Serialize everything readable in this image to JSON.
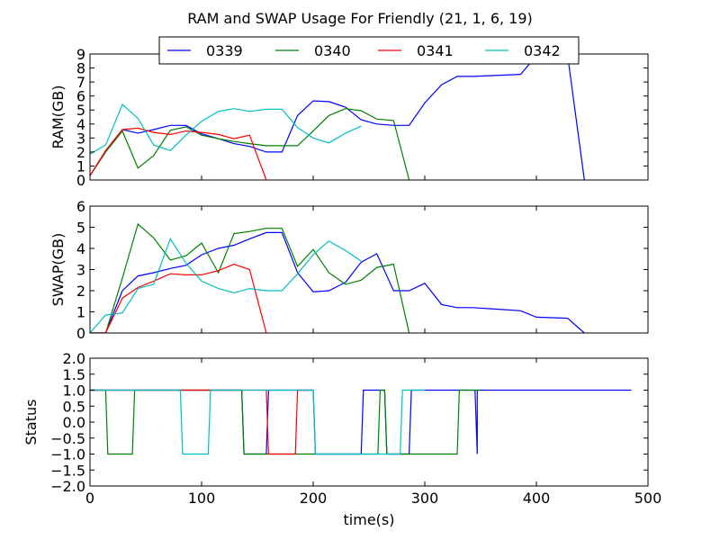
{
  "figure": {
    "title": "RAM and SWAP Usage For Friendly (21, 1, 6, 19)",
    "xlabel": "time(s)"
  },
  "chart_data": [
    {
      "type": "line",
      "ylabel": "RAM(GB)",
      "xlim": [
        0,
        500
      ],
      "ylim": [
        0,
        9
      ],
      "yticks": [
        0,
        1,
        2,
        3,
        4,
        5,
        6,
        7,
        8,
        9
      ],
      "xticks": [],
      "series": [
        {
          "name": "0339",
          "color": "#0000ff",
          "points": [
            [
              0,
              0.3
            ],
            [
              14,
              2.1
            ],
            [
              29,
              3.6
            ],
            [
              43,
              3.35
            ],
            [
              57,
              3.6
            ],
            [
              72,
              3.9
            ],
            [
              86,
              3.9
            ],
            [
              100,
              3.3
            ],
            [
              115,
              2.95
            ],
            [
              129,
              2.6
            ],
            [
              143,
              2.4
            ],
            [
              158,
              2.0
            ],
            [
              172,
              2.0
            ],
            [
              186,
              4.6
            ],
            [
              200,
              5.65
            ],
            [
              214,
              5.6
            ],
            [
              229,
              5.2
            ],
            [
              243,
              4.3
            ],
            [
              257,
              4.0
            ],
            [
              272,
              3.9
            ],
            [
              286,
              3.9
            ],
            [
              300,
              5.5
            ],
            [
              315,
              6.8
            ],
            [
              329,
              7.4
            ],
            [
              343,
              7.4
            ],
            [
              358,
              7.45
            ],
            [
              386,
              7.55
            ],
            [
              400,
              8.9
            ],
            [
              428,
              8.9
            ],
            [
              443,
              0
            ]
          ]
        },
        {
          "name": "0340",
          "color": "#008000",
          "points": [
            [
              0,
              0.3
            ],
            [
              14,
              2.0
            ],
            [
              29,
              3.5
            ],
            [
              43,
              0.85
            ],
            [
              57,
              1.75
            ],
            [
              72,
              3.55
            ],
            [
              86,
              3.8
            ],
            [
              100,
              3.2
            ],
            [
              115,
              2.95
            ],
            [
              129,
              2.75
            ],
            [
              143,
              2.6
            ],
            [
              158,
              2.45
            ],
            [
              172,
              2.45
            ],
            [
              186,
              2.45
            ],
            [
              200,
              3.5
            ],
            [
              214,
              4.6
            ],
            [
              229,
              5.1
            ],
            [
              243,
              4.95
            ],
            [
              257,
              4.35
            ],
            [
              272,
              4.25
            ],
            [
              286,
              0
            ]
          ]
        },
        {
          "name": "0341",
          "color": "#ff0000",
          "points": [
            [
              0,
              0.3
            ],
            [
              14,
              2.1
            ],
            [
              29,
              3.6
            ],
            [
              43,
              3.7
            ],
            [
              57,
              3.4
            ],
            [
              72,
              3.25
            ],
            [
              86,
              3.5
            ],
            [
              100,
              3.4
            ],
            [
              115,
              3.25
            ],
            [
              129,
              2.95
            ],
            [
              143,
              3.2
            ],
            [
              158,
              0
            ]
          ]
        },
        {
          "name": "0342",
          "color": "#00bfbf",
          "points": [
            [
              0,
              1.85
            ],
            [
              14,
              2.5
            ],
            [
              29,
              5.4
            ],
            [
              43,
              4.4
            ],
            [
              57,
              2.5
            ],
            [
              72,
              2.1
            ],
            [
              86,
              3.2
            ],
            [
              100,
              4.2
            ],
            [
              115,
              4.9
            ],
            [
              129,
              5.1
            ],
            [
              143,
              4.9
            ],
            [
              158,
              5.05
            ],
            [
              172,
              5.05
            ],
            [
              186,
              3.75
            ],
            [
              200,
              3.0
            ],
            [
              214,
              2.65
            ],
            [
              229,
              3.35
            ],
            [
              243,
              3.85
            ]
          ]
        }
      ]
    },
    {
      "type": "line",
      "ylabel": "SWAP(GB)",
      "xlim": [
        0,
        500
      ],
      "ylim": [
        0,
        6
      ],
      "yticks": [
        0,
        1,
        2,
        3,
        4,
        5,
        6
      ],
      "xticks": [],
      "series": [
        {
          "name": "0339",
          "color": "#0000ff",
          "points": [
            [
              0,
              0
            ],
            [
              14,
              0
            ],
            [
              29,
              2.0
            ],
            [
              43,
              2.7
            ],
            [
              57,
              2.85
            ],
            [
              72,
              3.05
            ],
            [
              86,
              3.2
            ],
            [
              100,
              3.7
            ],
            [
              115,
              4.0
            ],
            [
              129,
              4.15
            ],
            [
              143,
              4.45
            ],
            [
              158,
              4.75
            ],
            [
              172,
              4.75
            ],
            [
              186,
              2.85
            ],
            [
              200,
              1.95
            ],
            [
              214,
              2.0
            ],
            [
              229,
              2.4
            ],
            [
              243,
              3.35
            ],
            [
              257,
              3.75
            ],
            [
              272,
              2.0
            ],
            [
              286,
              2.0
            ],
            [
              300,
              2.35
            ],
            [
              315,
              1.35
            ],
            [
              329,
              1.2
            ],
            [
              343,
              1.2
            ],
            [
              358,
              1.15
            ],
            [
              372,
              1.1
            ],
            [
              386,
              1.05
            ],
            [
              400,
              0.75
            ],
            [
              428,
              0.7
            ],
            [
              443,
              0
            ]
          ]
        },
        {
          "name": "0340",
          "color": "#008000",
          "points": [
            [
              0,
              0
            ],
            [
              14,
              0
            ],
            [
              29,
              2.6
            ],
            [
              43,
              5.15
            ],
            [
              57,
              4.5
            ],
            [
              72,
              3.45
            ],
            [
              86,
              3.65
            ],
            [
              100,
              4.25
            ],
            [
              115,
              2.85
            ],
            [
              129,
              4.7
            ],
            [
              143,
              4.8
            ],
            [
              158,
              4.95
            ],
            [
              172,
              4.95
            ],
            [
              186,
              3.15
            ],
            [
              200,
              3.95
            ],
            [
              214,
              2.85
            ],
            [
              229,
              2.3
            ],
            [
              243,
              2.5
            ],
            [
              257,
              3.1
            ],
            [
              272,
              3.25
            ],
            [
              286,
              0
            ]
          ]
        },
        {
          "name": "0341",
          "color": "#ff0000",
          "points": [
            [
              0,
              0
            ],
            [
              14,
              0
            ],
            [
              29,
              1.65
            ],
            [
              43,
              2.15
            ],
            [
              57,
              2.45
            ],
            [
              72,
              2.8
            ],
            [
              86,
              2.75
            ],
            [
              100,
              2.75
            ],
            [
              115,
              2.95
            ],
            [
              129,
              3.25
            ],
            [
              143,
              3.0
            ],
            [
              158,
              0
            ]
          ]
        },
        {
          "name": "0342",
          "color": "#00bfbf",
          "points": [
            [
              0,
              0
            ],
            [
              14,
              0.85
            ],
            [
              29,
              0.95
            ],
            [
              43,
              2.1
            ],
            [
              57,
              2.3
            ],
            [
              72,
              4.45
            ],
            [
              86,
              3.3
            ],
            [
              100,
              2.45
            ],
            [
              115,
              2.1
            ],
            [
              129,
              1.9
            ],
            [
              143,
              2.1
            ],
            [
              158,
              2.0
            ],
            [
              172,
              2.0
            ],
            [
              186,
              2.8
            ],
            [
              200,
              3.7
            ],
            [
              214,
              4.35
            ],
            [
              229,
              3.9
            ],
            [
              243,
              3.4
            ]
          ]
        }
      ]
    },
    {
      "type": "line",
      "ylabel": "Status",
      "xlim": [
        0,
        500
      ],
      "ylim": [
        -2.0,
        2.0
      ],
      "yticks": [
        -2.0,
        -1.5,
        -1.0,
        -0.5,
        0.0,
        0.5,
        1.0,
        1.5,
        2.0
      ],
      "ytick_labels": [
        "−2.0",
        "−1.5",
        "−1.0",
        "−0.5",
        "0.0",
        "0.5",
        "1.0",
        "1.5",
        "2.0"
      ],
      "xticks": [
        0,
        100,
        200,
        300,
        400,
        500
      ],
      "series": [
        {
          "name": "0339",
          "color": "#0000ff",
          "points": [
            [
              0,
              1
            ],
            [
              136,
              1
            ],
            [
              138,
              -1
            ],
            [
              158,
              -1
            ],
            [
              160,
              1
            ],
            [
              200,
              1
            ],
            [
              202,
              -1
            ],
            [
              243,
              -1
            ],
            [
              245,
              1
            ],
            [
              264,
              1
            ],
            [
              266,
              -1
            ],
            [
              286,
              -1
            ],
            [
              288,
              1
            ],
            [
              345,
              1
            ],
            [
              347,
              -1
            ],
            [
              347,
              1
            ],
            [
              485,
              1
            ]
          ]
        },
        {
          "name": "0340",
          "color": "#008000",
          "points": [
            [
              0,
              1
            ],
            [
              14,
              1
            ],
            [
              16,
              -1
            ],
            [
              38,
              -1
            ],
            [
              40,
              1
            ],
            [
              136,
              1
            ],
            [
              138,
              -1
            ],
            [
              258,
              -1
            ],
            [
              260,
              1
            ],
            [
              264,
              1
            ],
            [
              266,
              -1
            ],
            [
              329,
              -1
            ],
            [
              331,
              1
            ],
            [
              350,
              1
            ]
          ]
        },
        {
          "name": "0341",
          "color": "#ff0000",
          "points": [
            [
              0,
              1
            ],
            [
              158,
              1
            ],
            [
              160,
              -1
            ],
            [
              184,
              -1
            ],
            [
              186,
              1
            ],
            [
              200,
              1
            ]
          ]
        },
        {
          "name": "0342",
          "color": "#00bfbf",
          "points": [
            [
              0,
              1
            ],
            [
              81,
              1
            ],
            [
              83,
              -1
            ],
            [
              106,
              -1
            ],
            [
              108,
              1
            ],
            [
              200,
              1
            ],
            [
              202,
              -1
            ],
            [
              266,
              -1
            ],
            [
              268,
              -1
            ],
            [
              278,
              -1
            ],
            [
              280,
              1
            ],
            [
              300,
              1
            ]
          ]
        }
      ]
    }
  ]
}
